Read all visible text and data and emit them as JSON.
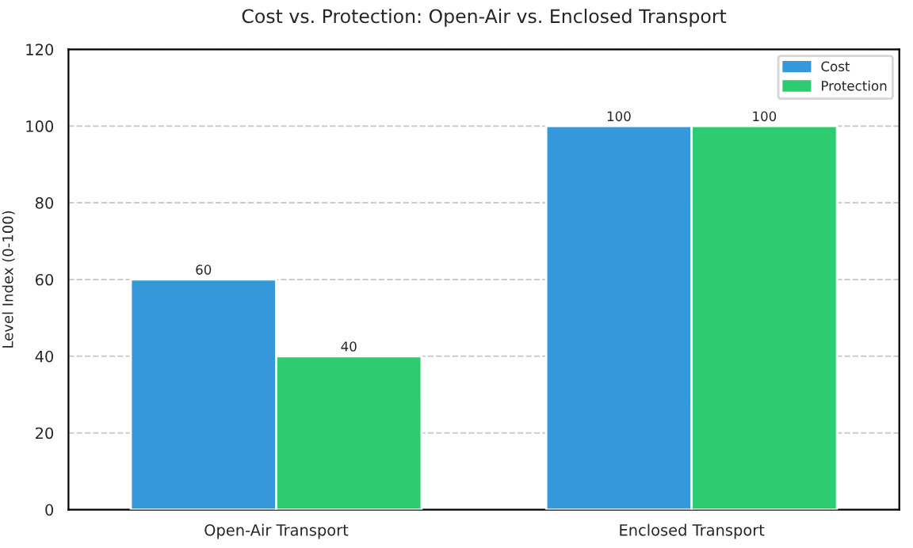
{
  "chart_data": {
    "type": "bar",
    "title": "Cost vs. Protection: Open-Air vs. Enclosed Transport",
    "ylabel": "Level Index (0-100)",
    "categories": [
      "Open-Air Transport",
      "Enclosed Transport"
    ],
    "series": [
      {
        "name": "Cost",
        "color": "#3498db",
        "values": [
          60,
          100
        ]
      },
      {
        "name": "Protection",
        "color": "#2ecc71",
        "values": [
          40,
          100
        ]
      }
    ],
    "ylim": [
      0,
      120
    ],
    "yticks": [
      0,
      20,
      40,
      60,
      80,
      100,
      120
    ],
    "grid": "y",
    "legend": "top right",
    "data_labels": true
  }
}
